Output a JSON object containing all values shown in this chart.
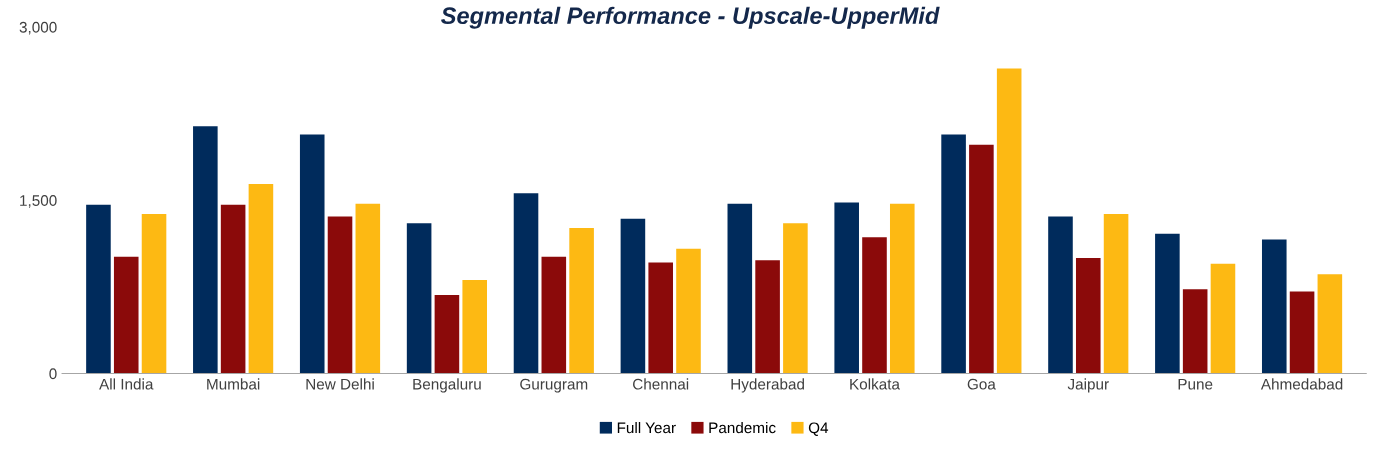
{
  "chart_data": {
    "type": "bar",
    "title": "Segmental Performance - Upscale-UpperMid",
    "categories": [
      "All India",
      "Mumbai",
      "New Delhi",
      "Bengaluru",
      "Gurugram",
      "Chennai",
      "Hyderabad",
      "Kolkata",
      "Goa",
      "Jaipur",
      "Pune",
      "Ahmedabad"
    ],
    "series": [
      {
        "name": "Full Year",
        "color": "#002b5c",
        "values": [
          1460,
          2140,
          2070,
          1300,
          1560,
          1340,
          1470,
          1480,
          2070,
          1360,
          1210,
          1160
        ]
      },
      {
        "name": "Pandemic",
        "color": "#8b0a0a",
        "values": [
          1010,
          1460,
          1360,
          680,
          1010,
          960,
          980,
          1180,
          1980,
          1000,
          730,
          710
        ]
      },
      {
        "name": "Q4",
        "color": "#fdb913",
        "values": [
          1380,
          1640,
          1470,
          810,
          1260,
          1080,
          1300,
          1470,
          2640,
          1380,
          950,
          860
        ]
      }
    ],
    "ylim": [
      0,
      3000
    ],
    "yticks": [
      0,
      {
        "value": 1500,
        "label": "1,500"
      },
      {
        "value": 3000,
        "label": "3,000"
      }
    ],
    "grid": false,
    "legend": "bottom"
  }
}
